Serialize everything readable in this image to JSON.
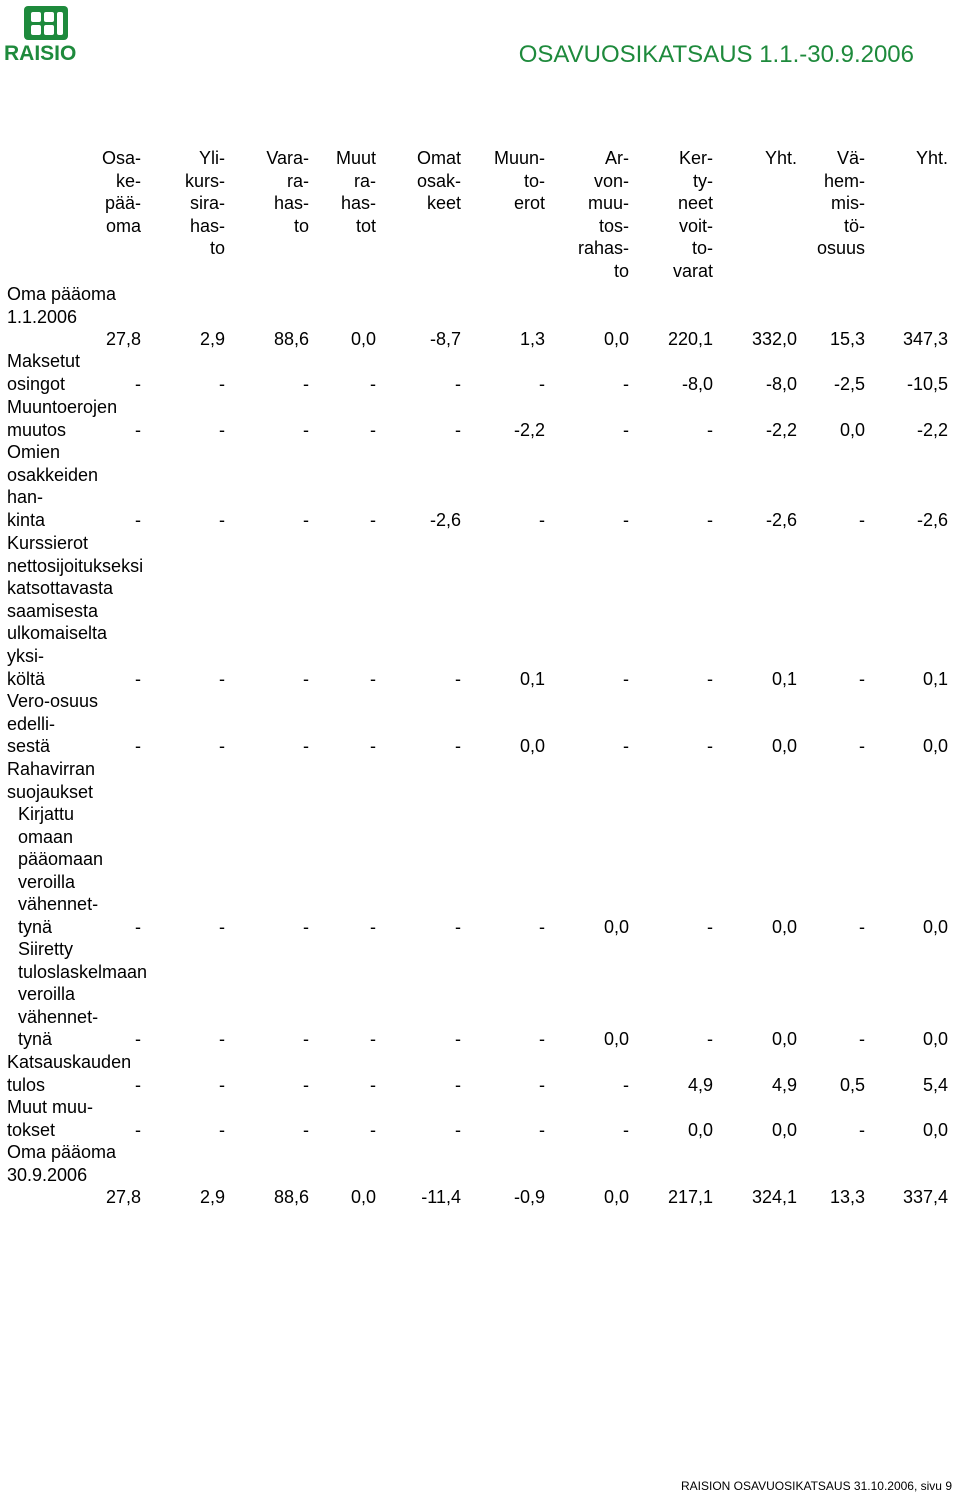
{
  "header": {
    "logo_text": "RAISIO",
    "doc_title": "OSAVUOSIKATSAUS 1.1.-30.9.2006"
  },
  "columns": [
    "Osa-\nke-\npää-\noma",
    "Yli-\nkurs-\nsira-\nhas-\nto",
    "Vara-\nra-\nhas-\nto",
    "Muut\nra-\nhas-\ntot",
    "Omat\nosak-\nkeet",
    "Muun-\nto-\nerot",
    "Ar-\nvon-\nmuu-\ntos-\nrahas-\nto",
    "Ker-\nty-\nneet\nvoit-\nto-\nvarat",
    "Yht.",
    "Vä-\nhem-\nmis-\ntö-\nosuus",
    "Yht."
  ],
  "rows": [
    {
      "label": [
        "Oma pääoma",
        "1.1.2006"
      ],
      "values": [
        "27,8",
        "2,9",
        "88,6",
        "0,0",
        "-8,7",
        "1,3",
        "0,0",
        "220,1",
        "332,0",
        "15,3",
        "347,3"
      ]
    },
    {
      "label": [
        "Maksetut",
        "osingot"
      ],
      "values": [
        "-",
        "-",
        "-",
        "-",
        "-",
        "-",
        "-",
        "-8,0",
        "-8,0",
        "-2,5",
        "-10,5"
      ]
    },
    {
      "label": [
        "Muuntoerojen",
        "muutos"
      ],
      "values": [
        "-",
        "-",
        "-",
        "-",
        "-",
        "-2,2",
        "-",
        "-",
        "-2,2",
        "0,0",
        "-2,2"
      ]
    },
    {
      "label": [
        "Omien",
        "osakkeiden",
        "han-",
        "kinta"
      ],
      "values": [
        "-",
        "-",
        "-",
        "-",
        "-2,6",
        "-",
        "-",
        "-",
        "-2,6",
        "-",
        "-2,6"
      ]
    },
    {
      "label": [
        "Kurssierot",
        "nettosijoitukseksi",
        "katsottavasta",
        "saamisesta",
        "ulkomaiselta",
        "yksi-",
        "költä"
      ],
      "values": [
        "-",
        "-",
        "-",
        "-",
        "-",
        "0,1",
        "-",
        "-",
        "0,1",
        "-",
        "0,1"
      ]
    },
    {
      "label": [
        "Vero-osuus",
        "edelli-",
        "sestä"
      ],
      "values": [
        "-",
        "-",
        "-",
        "-",
        "-",
        "0,0",
        "-",
        "-",
        "0,0",
        "-",
        "0,0"
      ]
    },
    {
      "label": [
        "Rahavirran",
        "suojaukset"
      ],
      "values": []
    },
    {
      "label": [
        "Kirjattu",
        "omaan",
        "pääomaan",
        "veroilla",
        "vähennet-",
        "tynä"
      ],
      "values": [
        "-",
        "-",
        "-",
        "-",
        "-",
        "-",
        "0,0",
        "-",
        "0,0",
        "-",
        "0,0"
      ]
    },
    {
      "label": [
        "Siiretty",
        "tuloslaskelmaan",
        "veroilla",
        "vähennet-",
        "tynä"
      ],
      "values": [
        "-",
        "-",
        "-",
        "-",
        "-",
        "-",
        "0,0",
        "-",
        "0,0",
        "-",
        "0,0"
      ]
    },
    {
      "label": [
        "Katsauskauden",
        "tulos"
      ],
      "values": [
        "-",
        "-",
        "-",
        "-",
        "-",
        "-",
        "-",
        "4,9",
        "4,9",
        "0,5",
        "5,4"
      ]
    },
    {
      "label": [
        "Muut muu-",
        "tokset"
      ],
      "values": [
        "-",
        "-",
        "-",
        "-",
        "-",
        "-",
        "-",
        "0,0",
        "0,0",
        "-",
        "0,0"
      ]
    },
    {
      "label": [
        "Oma pääoma",
        "30.9.2006"
      ],
      "values": [
        "27,8",
        "2,9",
        "88,6",
        "0,0",
        "-11,4",
        "-0,9",
        "0,0",
        "217,1",
        "324,1",
        "13,3",
        "337,4"
      ]
    }
  ],
  "footer": "RAISION OSAVUOSIKATSAUS 31.10.2006, sivu 9",
  "colors": {
    "brand_green": "#1e8a3c"
  }
}
